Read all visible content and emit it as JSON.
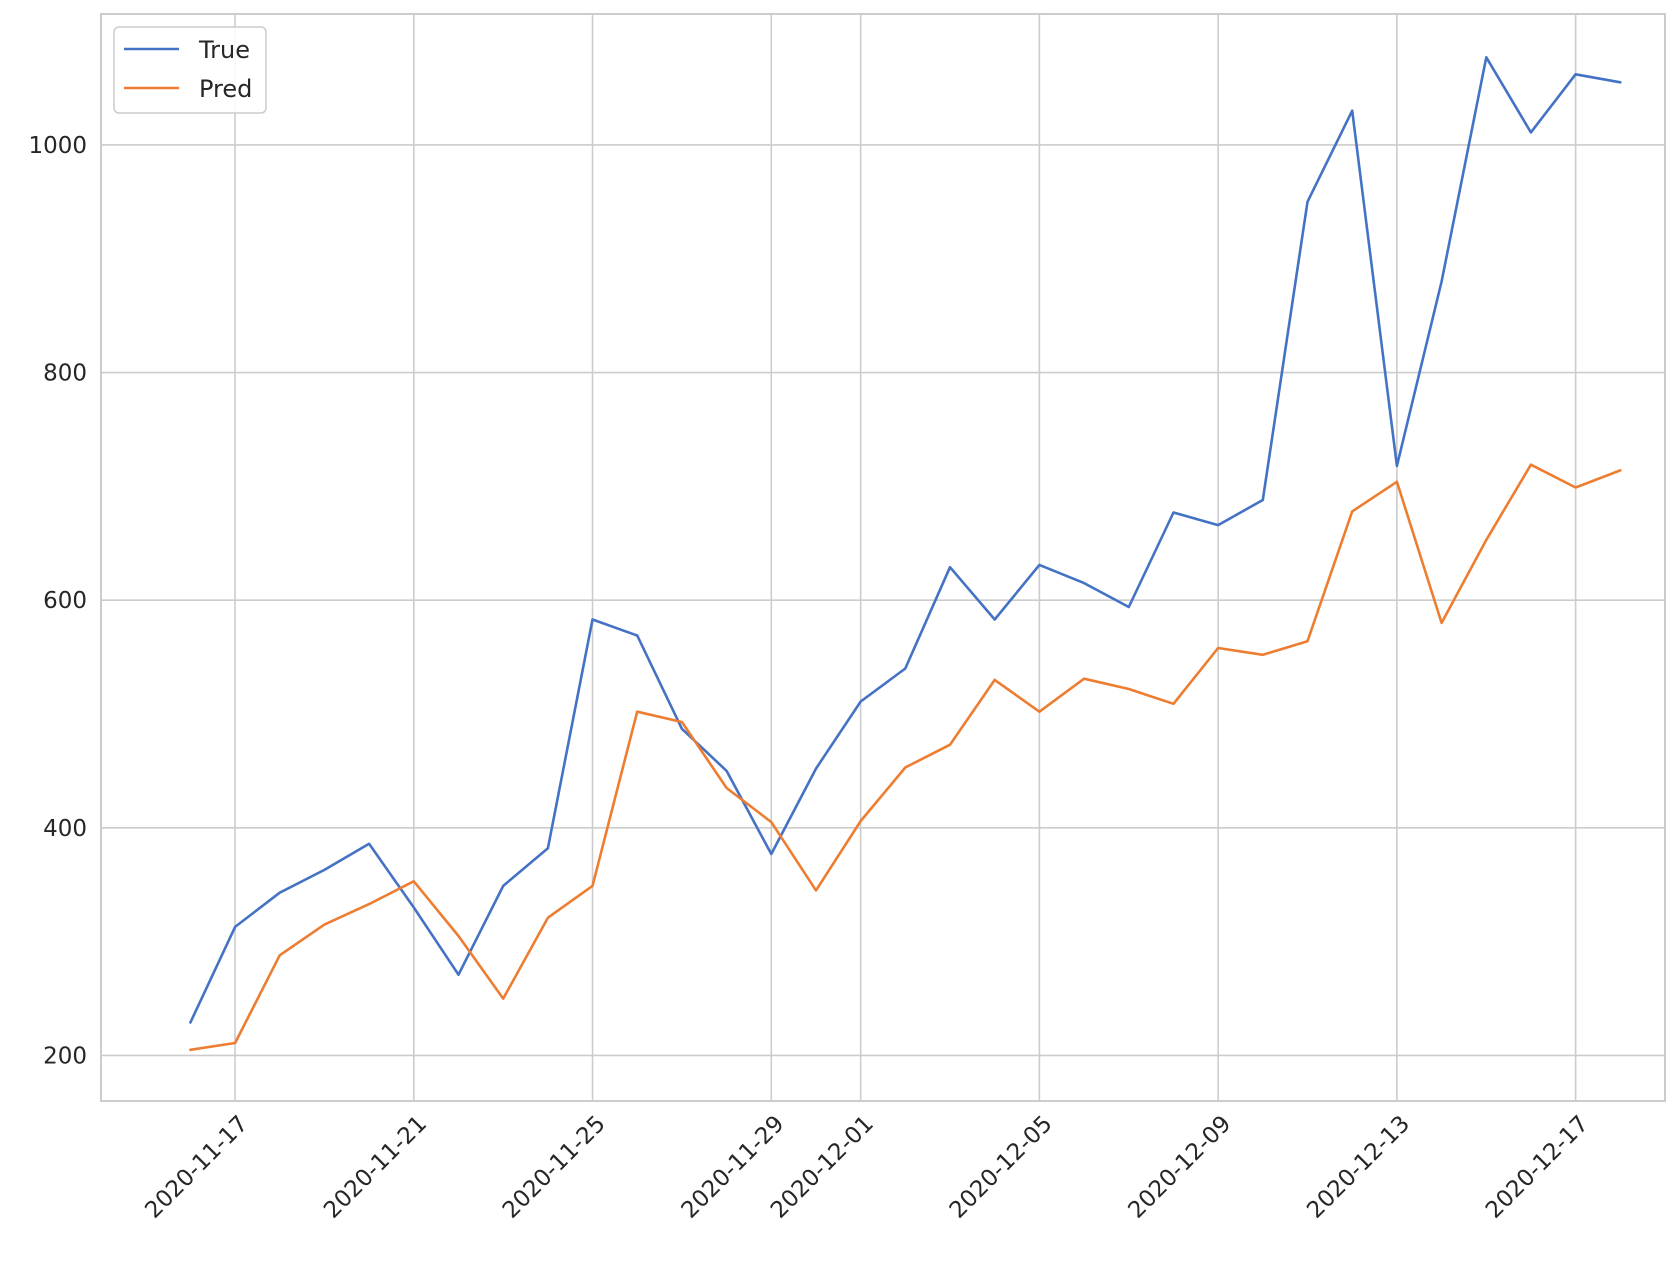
{
  "chart_data": {
    "type": "line",
    "title": "",
    "xlabel": "",
    "ylabel": "",
    "grid": true,
    "legend_position": "top-left",
    "x_start": "2020-11-16",
    "x_end": "2020-12-18",
    "x_domain": [
      "2020-11-14",
      "2020-12-19"
    ],
    "ylim": [
      160,
      1115
    ],
    "y_ticks": [
      200,
      400,
      600,
      800,
      1000
    ],
    "x_ticks": [
      "2020-11-17",
      "2020-11-21",
      "2020-11-25",
      "2020-11-29",
      "2020-12-01",
      "2020-12-05",
      "2020-12-09",
      "2020-12-13",
      "2020-12-17"
    ],
    "series": [
      {
        "name": "True",
        "color": "#4472c4",
        "values": [
          229,
          313,
          343,
          363,
          386,
          330,
          271,
          349,
          382,
          583,
          569,
          487,
          450,
          377,
          452,
          511,
          540,
          629,
          583,
          631,
          615,
          594,
          677,
          666,
          688,
          950,
          1030,
          718,
          880,
          1077,
          1011,
          1062,
          1055
        ]
      },
      {
        "name": "Pred",
        "color": "#ed7d31",
        "values": [
          205,
          211,
          288,
          315,
          333,
          353,
          305,
          250,
          321,
          349,
          502,
          493,
          435,
          405,
          345,
          406,
          453,
          473,
          530,
          502,
          531,
          522,
          509,
          558,
          552,
          564,
          678,
          704,
          580,
          653,
          719,
          699,
          714
        ]
      }
    ]
  }
}
